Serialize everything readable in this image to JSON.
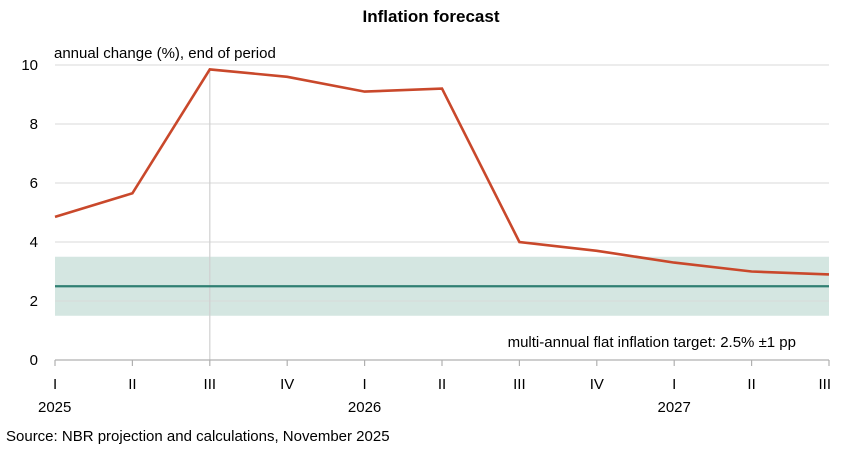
{
  "chart_data": {
    "type": "line",
    "title": "Inflation forecast",
    "ylabel": "annual change (%), end of period",
    "ylim": [
      0,
      10
    ],
    "yticks": [
      0,
      2,
      4,
      6,
      8,
      10
    ],
    "categories": [
      "I",
      "II",
      "III",
      "IV",
      "I",
      "II",
      "III",
      "IV",
      "I",
      "II",
      "III"
    ],
    "year_labels": [
      {
        "label": "2025",
        "index": 0
      },
      {
        "label": "2026",
        "index": 4
      },
      {
        "label": "2027",
        "index": 8
      }
    ],
    "grid": true,
    "series": [
      {
        "values": [
          4.85,
          5.65,
          9.85,
          9.6,
          9.1,
          9.2,
          4.0,
          3.7,
          3.3,
          3.0,
          2.9
        ],
        "color": "#c9482b"
      }
    ],
    "target": {
      "label": "multi-annual flat inflation target: 2.5% ±1 pp",
      "value": 2.5,
      "band": [
        1.5,
        3.5
      ],
      "line_color": "#2f7f72",
      "band_color": "#d4e6e1",
      "label_color": "#3a8f80"
    },
    "marker_index": 2,
    "source": "Source: NBR projection and calculations, November 2025"
  }
}
